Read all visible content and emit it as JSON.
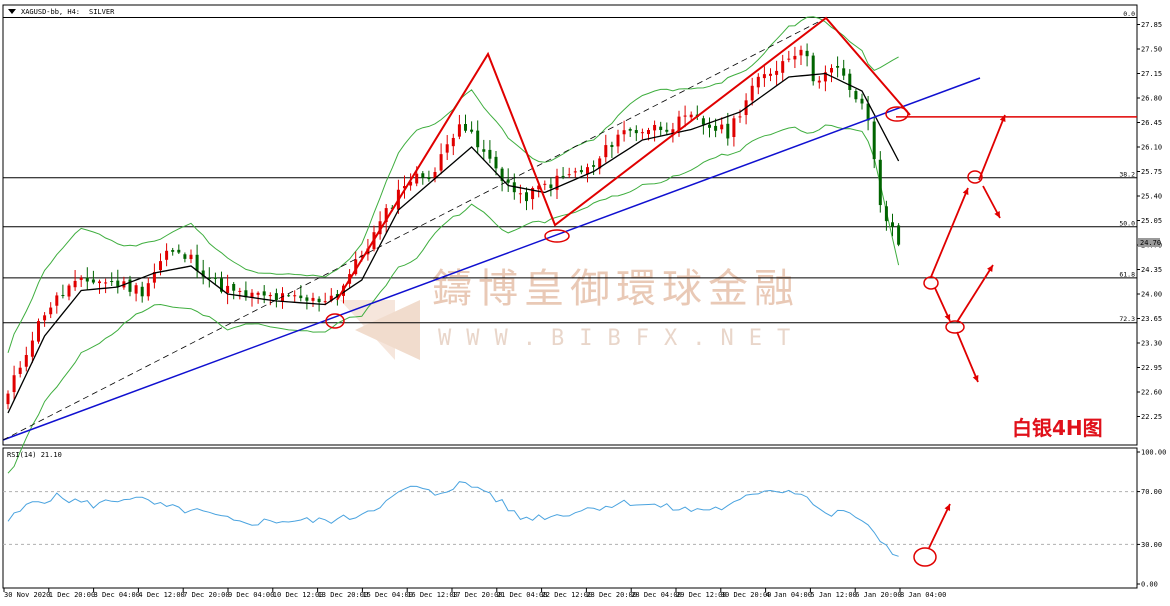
{
  "header": {
    "symbol": "XAGUSD-bb, H4:",
    "name": "SILVER"
  },
  "rsi": {
    "label": "RSI(14) 21.10",
    "levels": [
      "100.00",
      "70.00",
      "30.00",
      "0.00"
    ]
  },
  "watermark": {
    "chinese": "鑄博皇御環球金融",
    "english": "WWW.BIBFX.NET"
  },
  "annotation": {
    "text": "白银4H图"
  },
  "colors": {
    "bull": "#e00000",
    "bear": "#006400",
    "band": "#3fae3f",
    "trend": "#1010d0",
    "ma": "#000000",
    "rsi": "#4aa3df",
    "drawing": "#e00000"
  },
  "chart_data": [
    {
      "type": "candlestick",
      "title": "XAGUSD-bb, H4: SILVER",
      "overlays": [
        "Bollinger Bands",
        "Moving average",
        "Fibonacci retracement",
        "Trend line",
        "Annotations"
      ],
      "y_ticks": [
        "27.85",
        "27.50",
        "27.15",
        "26.80",
        "26.45",
        "26.10",
        "25.75",
        "25.40",
        "25.05",
        "24.70",
        "24.35",
        "24.00",
        "23.65",
        "23.30",
        "22.95",
        "22.60",
        "22.25"
      ],
      "ylim": [
        22.0,
        28.0
      ],
      "current_price": "24.70",
      "x_ticks": [
        "30 Nov 2020",
        "1 Dec 20:00",
        "3 Dec 04:00",
        "4 Dec 12:00",
        "7 Dec 20:00",
        "9 Dec 04:00",
        "10 Dec 12:00",
        "13 Dec 20:00",
        "15 Dec 04:00",
        "16 Dec 12:00",
        "17 Dec 20:00",
        "21 Dec 04:00",
        "22 Dec 12:00",
        "23 Dec 20:00",
        "28 Dec 04:00",
        "29 Dec 12:00",
        "30 Dec 20:00",
        "4 Jan 04:00",
        "5 Jan 12:00",
        "6 Jan 20:00",
        "8 Jan 04:00"
      ],
      "fibonacci_levels": [
        {
          "label": "0.0",
          "price": 27.95
        },
        {
          "label": "38.2",
          "price": 25.66
        },
        {
          "label": "50.0",
          "price": 24.96
        },
        {
          "label": "61.8",
          "price": 24.23
        },
        {
          "label": "72.3",
          "price": 23.59
        }
      ],
      "horizontal_levels": [
        26.53
      ],
      "close_anchors": [
        {
          "i": 0,
          "c": 22.55
        },
        {
          "i": 3,
          "c": 23.2
        },
        {
          "i": 6,
          "c": 23.75
        },
        {
          "i": 10,
          "c": 24.1
        },
        {
          "i": 14,
          "c": 24.2
        },
        {
          "i": 18,
          "c": 24.15
        },
        {
          "i": 22,
          "c": 24.05
        },
        {
          "i": 26,
          "c": 24.6
        },
        {
          "i": 30,
          "c": 24.5
        },
        {
          "i": 34,
          "c": 24.15
        },
        {
          "i": 38,
          "c": 23.98
        },
        {
          "i": 44,
          "c": 23.95
        },
        {
          "i": 50,
          "c": 23.9
        },
        {
          "i": 54,
          "c": 24.0
        },
        {
          "i": 60,
          "c": 24.85
        },
        {
          "i": 65,
          "c": 25.6
        },
        {
          "i": 70,
          "c": 25.75
        },
        {
          "i": 74,
          "c": 26.5
        },
        {
          "i": 77,
          "c": 26.1
        },
        {
          "i": 80,
          "c": 25.8
        },
        {
          "i": 84,
          "c": 25.35
        },
        {
          "i": 88,
          "c": 25.55
        },
        {
          "i": 92,
          "c": 25.7
        },
        {
          "i": 96,
          "c": 25.8
        },
        {
          "i": 100,
          "c": 26.3
        },
        {
          "i": 104,
          "c": 26.35
        },
        {
          "i": 108,
          "c": 26.4
        },
        {
          "i": 112,
          "c": 26.5
        },
        {
          "i": 118,
          "c": 26.3
        },
        {
          "i": 122,
          "c": 26.95
        },
        {
          "i": 126,
          "c": 27.25
        },
        {
          "i": 130,
          "c": 27.55
        },
        {
          "i": 132,
          "c": 27.1
        },
        {
          "i": 136,
          "c": 27.2
        },
        {
          "i": 139,
          "c": 26.8
        },
        {
          "i": 141,
          "c": 26.5
        },
        {
          "i": 143,
          "c": 25.3
        },
        {
          "i": 145,
          "c": 24.9
        },
        {
          "i": 146,
          "c": 24.7
        }
      ],
      "ma_anchors": [
        {
          "i": 0,
          "c": 22.3
        },
        {
          "i": 6,
          "c": 23.4
        },
        {
          "i": 12,
          "c": 24.05
        },
        {
          "i": 18,
          "c": 24.1
        },
        {
          "i": 24,
          "c": 24.3
        },
        {
          "i": 30,
          "c": 24.4
        },
        {
          "i": 36,
          "c": 24.0
        },
        {
          "i": 44,
          "c": 23.9
        },
        {
          "i": 52,
          "c": 23.85
        },
        {
          "i": 58,
          "c": 24.2
        },
        {
          "i": 64,
          "c": 25.2
        },
        {
          "i": 70,
          "c": 25.65
        },
        {
          "i": 76,
          "c": 26.1
        },
        {
          "i": 82,
          "c": 25.55
        },
        {
          "i": 88,
          "c": 25.45
        },
        {
          "i": 96,
          "c": 25.75
        },
        {
          "i": 104,
          "c": 26.2
        },
        {
          "i": 112,
          "c": 26.35
        },
        {
          "i": 120,
          "c": 26.6
        },
        {
          "i": 128,
          "c": 27.1
        },
        {
          "i": 134,
          "c": 27.15
        },
        {
          "i": 140,
          "c": 26.9
        },
        {
          "i": 146,
          "c": 25.9
        }
      ]
    },
    {
      "type": "line",
      "title": "RSI(14) 21.10",
      "ylim": [
        0,
        100
      ],
      "y_ticks": [
        "100.00",
        "70.00",
        "30.00",
        "0.00"
      ],
      "anchors": [
        {
          "i": 0,
          "v": 48
        },
        {
          "i": 4,
          "v": 62
        },
        {
          "i": 8,
          "v": 66
        },
        {
          "i": 14,
          "v": 60
        },
        {
          "i": 20,
          "v": 66
        },
        {
          "i": 26,
          "v": 58
        },
        {
          "i": 32,
          "v": 54
        },
        {
          "i": 38,
          "v": 46
        },
        {
          "i": 44,
          "v": 48
        },
        {
          "i": 52,
          "v": 48
        },
        {
          "i": 56,
          "v": 50
        },
        {
          "i": 62,
          "v": 62
        },
        {
          "i": 66,
          "v": 74
        },
        {
          "i": 70,
          "v": 68
        },
        {
          "i": 74,
          "v": 76
        },
        {
          "i": 78,
          "v": 72
        },
        {
          "i": 84,
          "v": 50
        },
        {
          "i": 90,
          "v": 52
        },
        {
          "i": 96,
          "v": 58
        },
        {
          "i": 102,
          "v": 62
        },
        {
          "i": 108,
          "v": 58
        },
        {
          "i": 112,
          "v": 56
        },
        {
          "i": 118,
          "v": 58
        },
        {
          "i": 124,
          "v": 72
        },
        {
          "i": 130,
          "v": 70
        },
        {
          "i": 134,
          "v": 52
        },
        {
          "i": 138,
          "v": 55
        },
        {
          "i": 142,
          "v": 38
        },
        {
          "i": 146,
          "v": 21
        }
      ]
    }
  ]
}
